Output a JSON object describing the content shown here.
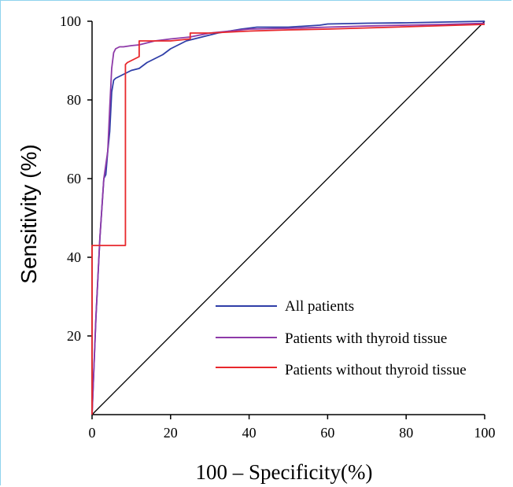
{
  "chart_data": {
    "type": "line",
    "title": "",
    "xlabel": "100 – Specificity(%)",
    "ylabel": "Sensitivity (%)",
    "xlim": [
      0,
      100
    ],
    "ylim": [
      0,
      100
    ],
    "x_ticks": [
      "0",
      "20",
      "40",
      "60",
      "80",
      "100"
    ],
    "y_ticks": [
      "20",
      "40",
      "60",
      "80",
      "100"
    ],
    "y_tick_values": [
      20,
      40,
      60,
      80,
      100
    ],
    "grid": false,
    "legend_position": "bottom-right",
    "reference_line": {
      "x": [
        0,
        100
      ],
      "y": [
        0,
        100
      ]
    },
    "series": [
      {
        "name": "All patients",
        "color": "#2f3ea8",
        "x": [
          0,
          1,
          2,
          3,
          3.5,
          4,
          4.5,
          5,
          5.5,
          6,
          7,
          8,
          9,
          10,
          12,
          14,
          16,
          18,
          20,
          22,
          24,
          26,
          28,
          30,
          32,
          35,
          38,
          42,
          50,
          58,
          60,
          70,
          80,
          90,
          100
        ],
        "y": [
          0,
          25,
          45,
          60,
          61,
          67,
          72,
          82,
          85,
          85.5,
          86,
          86.5,
          87,
          87.5,
          88,
          89.5,
          90.5,
          91.5,
          93,
          94,
          95,
          95.5,
          96,
          96.5,
          97,
          97.5,
          98,
          98.5,
          98.5,
          99,
          99.3,
          99.5,
          99.6,
          99.8,
          100
        ]
      },
      {
        "name": "Patients with thyroid tissue",
        "color": "#8e3aa8",
        "x": [
          0,
          1,
          2,
          3,
          4,
          4.5,
          5,
          5.5,
          6,
          7,
          8,
          10,
          12,
          14,
          16,
          20,
          25,
          30,
          35,
          40,
          50,
          60,
          70,
          80,
          90,
          100
        ],
        "y": [
          0,
          25,
          45,
          60,
          67,
          78,
          88,
          92,
          93,
          93.5,
          93.5,
          93.8,
          94,
          94.5,
          95,
          95.5,
          96,
          97,
          97.5,
          98,
          98.2,
          98.5,
          98.8,
          99,
          99.2,
          99.5
        ]
      },
      {
        "name": "Patients without thyroid tissue",
        "color": "#e8282c",
        "x": [
          0,
          0,
          8.5,
          8.5,
          9,
          12,
          12,
          15,
          20,
          25,
          25,
          30,
          40,
          50,
          60,
          70,
          80,
          90,
          100
        ],
        "y": [
          0,
          43,
          43,
          89,
          89.5,
          91,
          95,
          95,
          95,
          95.5,
          97,
          97,
          97.5,
          97.8,
          98,
          98.3,
          98.6,
          98.9,
          99.2
        ]
      }
    ]
  }
}
